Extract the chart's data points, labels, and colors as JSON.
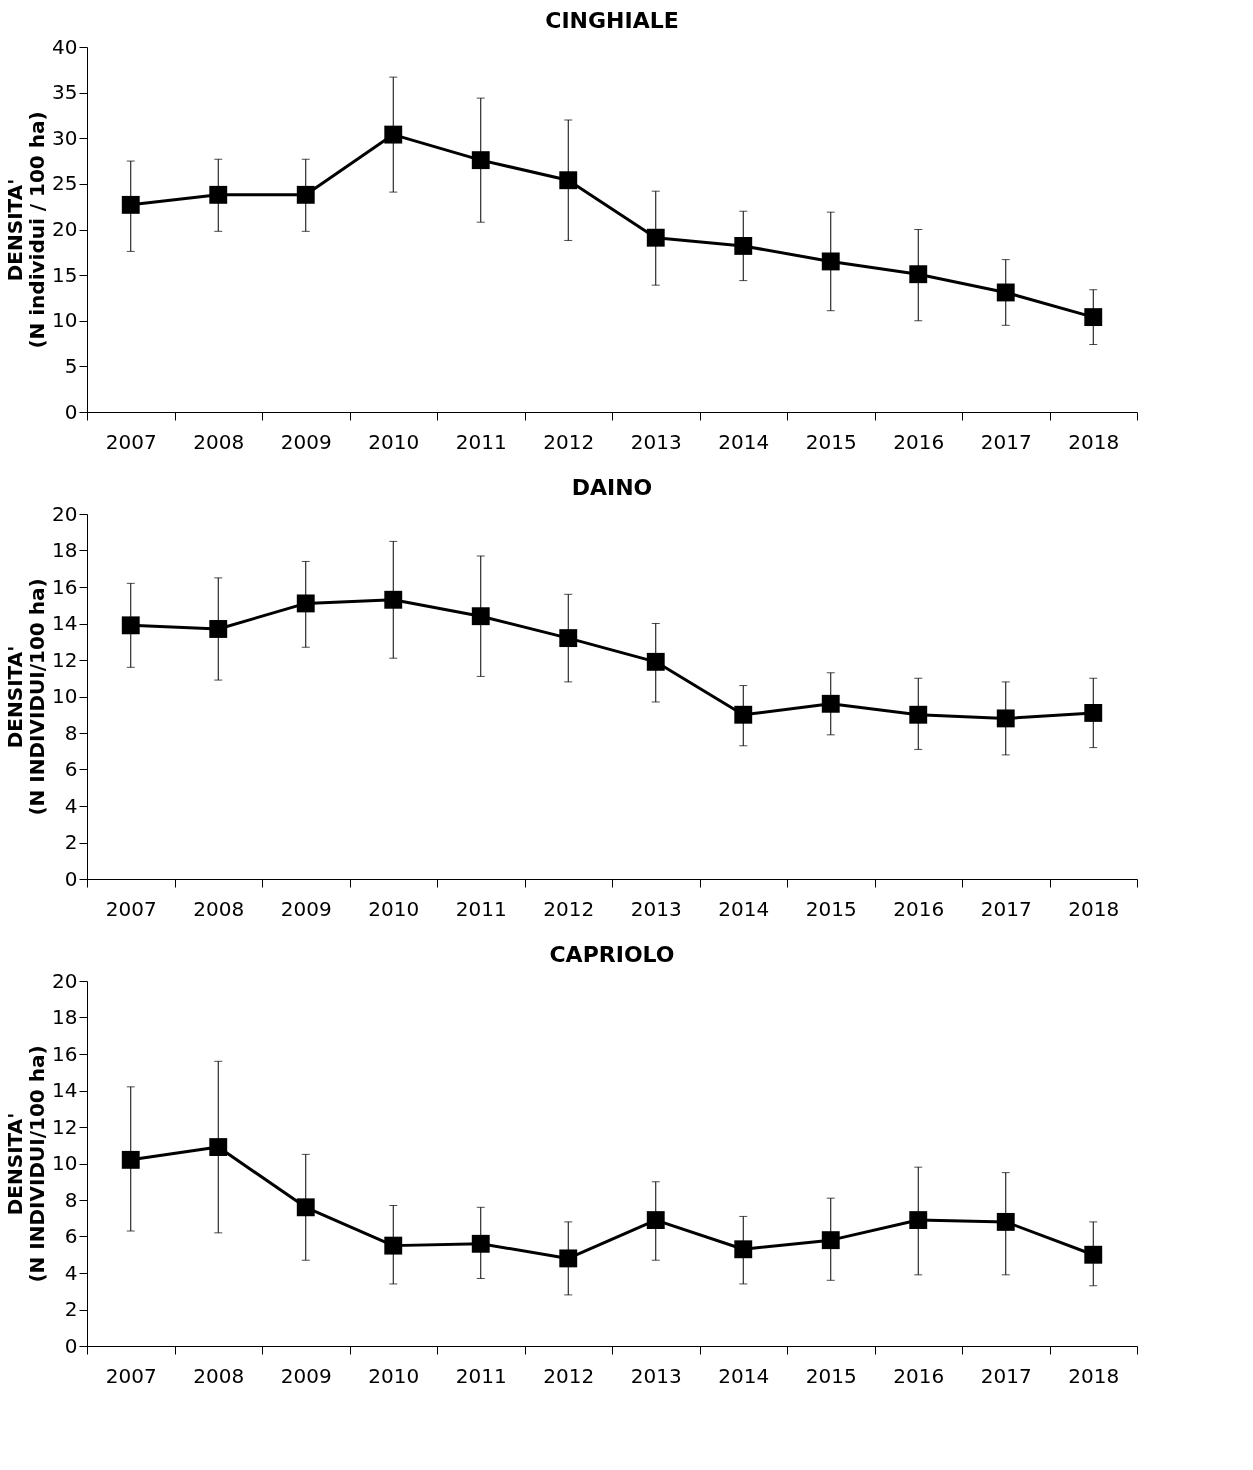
{
  "chart_data": [
    {
      "type": "line",
      "title": "CINGHIALE",
      "ylabel": "DENSITA'\n(N individui / 100 ha)",
      "categories": [
        "2007",
        "2008",
        "2009",
        "2010",
        "2011",
        "2012",
        "2013",
        "2014",
        "2015",
        "2016",
        "2017",
        "2018"
      ],
      "marker": "square",
      "series": [
        {
          "color": "#000000",
          "values": [
            22.7,
            23.8,
            23.8,
            30.4,
            27.6,
            25.4,
            19.1,
            18.2,
            16.5,
            15.1,
            13.1,
            10.4
          ],
          "errors": [
            [
              17.6,
              27.5
            ],
            [
              19.8,
              27.7
            ],
            [
              19.8,
              27.7
            ],
            [
              24.1,
              36.7
            ],
            [
              20.8,
              34.4
            ],
            [
              18.8,
              32
            ],
            [
              13.9,
              24.2
            ],
            [
              14.4,
              22
            ],
            [
              11.1,
              21.9
            ],
            [
              10,
              20
            ],
            [
              9.5,
              16.7
            ],
            [
              7.4,
              13.4
            ]
          ]
        }
      ],
      "ylim": [
        0,
        40
      ],
      "yticks": [
        0,
        5,
        10,
        15,
        20,
        25,
        30,
        35,
        40
      ]
    },
    {
      "type": "line",
      "title": "DAINO",
      "ylabel": "DENSITA'\n(N INDIVIDUI/100 ha)",
      "categories": [
        "2007",
        "2008",
        "2009",
        "2010",
        "2011",
        "2012",
        "2013",
        "2014",
        "2015",
        "2016",
        "2017",
        "2018"
      ],
      "marker": "square",
      "series": [
        {
          "color": "#000000",
          "values": [
            13.9,
            13.7,
            15.1,
            15.3,
            14.4,
            13.2,
            11.9,
            9.0,
            9.6,
            9.0,
            8.8,
            9.1
          ],
          "errors": [
            [
              11.6,
              16.2
            ],
            [
              10.9,
              16.5
            ],
            [
              12.7,
              17.4
            ],
            [
              12.1,
              18.5
            ],
            [
              11.1,
              17.7
            ],
            [
              10.8,
              15.6
            ],
            [
              9.7,
              14
            ],
            [
              7.3,
              10.6
            ],
            [
              7.9,
              11.3
            ],
            [
              7.1,
              11
            ],
            [
              6.8,
              10.8
            ],
            [
              7.2,
              11
            ]
          ]
        }
      ],
      "ylim": [
        0,
        20
      ],
      "yticks": [
        0,
        2,
        4,
        6,
        8,
        10,
        12,
        14,
        16,
        18,
        20
      ]
    },
    {
      "type": "line",
      "title": "CAPRIOLO",
      "ylabel": "DENSITA'\n(N INDIVIDUI/100 ha)",
      "categories": [
        "2007",
        "2008",
        "2009",
        "2010",
        "2011",
        "2012",
        "2013",
        "2014",
        "2015",
        "2016",
        "2017",
        "2018"
      ],
      "marker": "square",
      "series": [
        {
          "color": "#000000",
          "values": [
            10.2,
            10.9,
            7.6,
            5.5,
            5.6,
            4.8,
            6.9,
            5.3,
            5.8,
            6.9,
            6.8,
            5.0
          ],
          "errors": [
            [
              6.3,
              14.2
            ],
            [
              6.2,
              15.6
            ],
            [
              4.7,
              10.5
            ],
            [
              3.4,
              7.7
            ],
            [
              3.7,
              7.6
            ],
            [
              2.8,
              6.8
            ],
            [
              4.7,
              9
            ],
            [
              3.4,
              7.1
            ],
            [
              3.6,
              8.1
            ],
            [
              3.9,
              9.8
            ],
            [
              3.9,
              9.5
            ],
            [
              3.3,
              6.8
            ]
          ]
        }
      ],
      "ylim": [
        0,
        20
      ],
      "yticks": [
        0,
        2,
        4,
        6,
        8,
        10,
        12,
        14,
        16,
        18,
        20
      ]
    }
  ]
}
